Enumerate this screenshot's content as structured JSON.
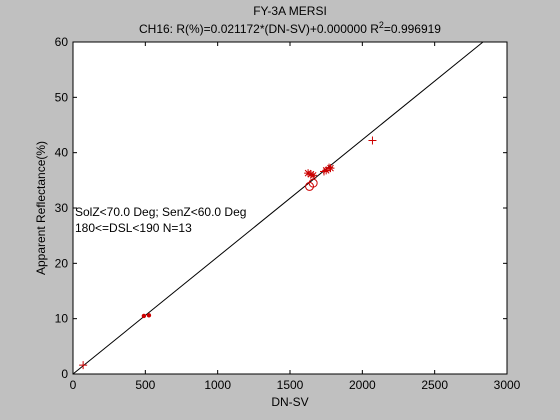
{
  "chart_data": {
    "type": "scatter",
    "title_line1": "FY-3A MERSI",
    "title_line2_prefix": "CH16: R(%)=0.021172*(DN-SV)+0.000000 R",
    "title_line2_sup": "2",
    "title_line2_suffix": "=0.996919",
    "xlabel": "DN-SV",
    "ylabel": "Apparent Reflectance(%)",
    "xlim": [
      0,
      3000
    ],
    "ylim": [
      0,
      60
    ],
    "x_ticks": [
      0,
      500,
      1000,
      1500,
      2000,
      2500,
      3000
    ],
    "y_ticks": [
      0,
      10,
      20,
      30,
      40,
      50,
      60
    ],
    "grid": false,
    "annotations": [
      "SolZ<70.0 Deg; SenZ<60.0 Deg",
      "180<=DSL<190 N=13"
    ],
    "fit_line": {
      "slope": 0.021172,
      "intercept": 0.0
    },
    "series": [
      {
        "marker": "dot",
        "color": "#cc0000",
        "points": [
          [
            490,
            10.5
          ],
          [
            525,
            10.6
          ]
        ]
      },
      {
        "marker": "plus",
        "color": "#cc0000",
        "points": [
          [
            70,
            1.6
          ],
          [
            2070,
            42.2
          ],
          [
            1735,
            36.6
          ],
          [
            1770,
            37.3
          ]
        ]
      },
      {
        "marker": "star",
        "color": "#cc0000",
        "points": [
          [
            1625,
            36.3
          ],
          [
            1645,
            36.1
          ],
          [
            1660,
            35.9
          ],
          [
            1750,
            36.8
          ],
          [
            1780,
            37.2
          ]
        ]
      },
      {
        "marker": "circle",
        "color": "#cc0000",
        "points": [
          [
            1635,
            33.9
          ],
          [
            1660,
            34.5
          ]
        ]
      }
    ]
  }
}
